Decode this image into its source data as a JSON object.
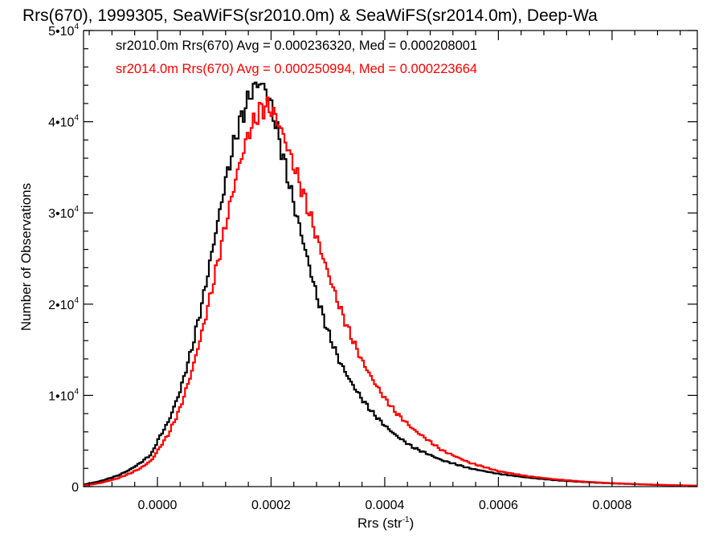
{
  "chart_data": {
    "type": "line",
    "step": true,
    "title": "Rrs(670), 1999305, SeaWiFS(sr2010.0m) & SeaWiFS(sr2014.0m), Deep-Wa",
    "xlabel": "Rrs (str",
    "xlabel_sup": "-1",
    "xlabel_suffix": ")",
    "ylabel": "Number of Observations",
    "xlim": [
      -0.00013,
      0.00095
    ],
    "ylim": [
      0,
      50000
    ],
    "x_ticks": [
      0.0,
      0.0002,
      0.0004,
      0.0006,
      0.0008
    ],
    "x_tick_labels": [
      "0.0000",
      "0.0002",
      "0.0004",
      "0.0006",
      "0.0008"
    ],
    "y_ticks": [
      0,
      10000,
      20000,
      30000,
      40000,
      50000
    ],
    "y_tick_labels": [
      {
        "base": "0",
        "sup": ""
      },
      {
        "base": "1•10",
        "sup": "4"
      },
      {
        "base": "2•10",
        "sup": "4"
      },
      {
        "base": "3•10",
        "sup": "4"
      },
      {
        "base": "4•10",
        "sup": "4"
      },
      {
        "base": "5•10",
        "sup": "4"
      }
    ],
    "grid": false,
    "legend_position": "top-left",
    "series": [
      {
        "name": "sr2010.0m",
        "color": "#000000",
        "label": "sr2010.0m Rrs(670) Avg = 0.000236320, Med = 0.000208001",
        "x": [
          -0.00013,
          -0.0001,
          -7e-05,
          -5e-05,
          -3e-05,
          -1e-05,
          0.0,
          2e-05,
          4e-05,
          6e-05,
          8e-05,
          0.0001,
          0.00012,
          0.00014,
          0.00016,
          0.00017,
          0.00018,
          0.00019,
          0.0002,
          0.00021,
          0.00022,
          0.00024,
          0.00026,
          0.00028,
          0.0003,
          0.00032,
          0.00034,
          0.00036,
          0.00038,
          0.0004,
          0.00042,
          0.00045,
          0.0005,
          0.00055,
          0.0006,
          0.00065,
          0.0007,
          0.00075,
          0.0008,
          0.00085,
          0.0009,
          0.00095
        ],
        "y": [
          200,
          600,
          1200,
          1800,
          2600,
          3600,
          5000,
          7200,
          10500,
          15000,
          20500,
          27000,
          33500,
          39000,
          42500,
          43800,
          44300,
          43600,
          41800,
          39300,
          36500,
          31000,
          26000,
          21000,
          17000,
          13800,
          11500,
          9600,
          8000,
          6700,
          5600,
          4300,
          2900,
          2000,
          1400,
          1000,
          700,
          500,
          350,
          250,
          150,
          100
        ]
      },
      {
        "name": "sr2014.0m",
        "color": "#ff0000",
        "label": "sr2014.0m Rrs(670) Avg = 0.000250994, Med = 0.000223664",
        "x": [
          -0.00013,
          -0.0001,
          -7e-05,
          -5e-05,
          -3e-05,
          -1e-05,
          0.0,
          2e-05,
          4e-05,
          6e-05,
          8e-05,
          0.0001,
          0.00012,
          0.00014,
          0.00016,
          0.00018,
          0.00019,
          0.0002,
          0.00021,
          0.00022,
          0.00024,
          0.00026,
          0.00028,
          0.0003,
          0.00032,
          0.00034,
          0.00036,
          0.00038,
          0.0004,
          0.00042,
          0.00045,
          0.0005,
          0.00055,
          0.0006,
          0.00065,
          0.0007,
          0.00075,
          0.0008,
          0.00085,
          0.0009,
          0.00095
        ],
        "y": [
          100,
          400,
          900,
          1400,
          2000,
          2900,
          3900,
          5800,
          8600,
          12500,
          17300,
          22800,
          28700,
          34300,
          38700,
          41200,
          41700,
          41400,
          40300,
          38800,
          35200,
          31500,
          27400,
          23500,
          19800,
          16600,
          13800,
          11600,
          9700,
          8100,
          6300,
          4000,
          2600,
          1700,
          1150,
          800,
          550,
          380,
          260,
          170,
          100
        ]
      }
    ]
  }
}
